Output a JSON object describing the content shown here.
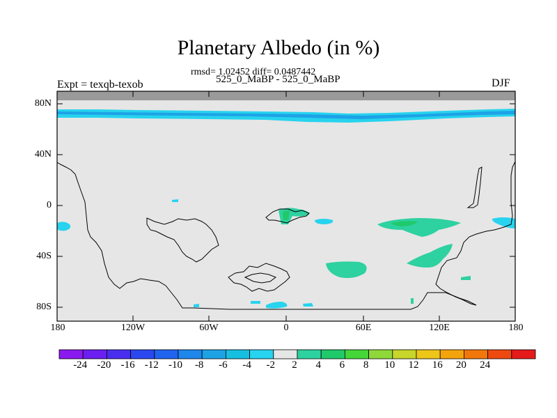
{
  "title": "Planetary Albedo (in %)",
  "stats_line": "rmsd= 1.02452 diff= 0.0487442",
  "subtitle": "525_0_MaBP - 525_0_MaBP",
  "left_label": "Expt = texqb-texob",
  "right_label": "DJF",
  "chart_data": {
    "type": "heatmap",
    "title": "Planetary Albedo (in %)",
    "lat_ticks": [
      "80N",
      "40N",
      "0",
      "40S",
      "80S"
    ],
    "lon_ticks": [
      "180",
      "120W",
      "60W",
      "0",
      "60E",
      "120E",
      "180"
    ],
    "background_band": {
      "range_label": "-2 to 2",
      "color": "#e6e6e6"
    },
    "colorbar": {
      "labels": [
        "-24",
        "-20",
        "-16",
        "-12",
        "-10",
        "-8",
        "-6",
        "-4",
        "-2",
        "2",
        "4",
        "6",
        "8",
        "10",
        "12",
        "16",
        "20",
        "24"
      ],
      "colors": [
        "#8a1aef",
        "#6b1ff0",
        "#4a2ef0",
        "#2a47f0",
        "#1f63ee",
        "#1f86ec",
        "#1ea2e6",
        "#16bfe0",
        "#27d3ee",
        "#e6e6e6",
        "#2ed1a0",
        "#20c96a",
        "#45d63a",
        "#8fd83a",
        "#c8d52a",
        "#eec618",
        "#f3a40c",
        "#f1770a",
        "#ee4a10",
        "#e51a1a"
      ]
    },
    "features": [
      {
        "name": "negative anomaly band near 75N",
        "range": "-4 to -2"
      },
      {
        "name": "positive anomaly patches in tropics/southern subtropics",
        "range": "2 to 6"
      }
    ]
  },
  "colors": {
    "gray_cap": "#9a9a9a",
    "land_outline": "#000000"
  }
}
